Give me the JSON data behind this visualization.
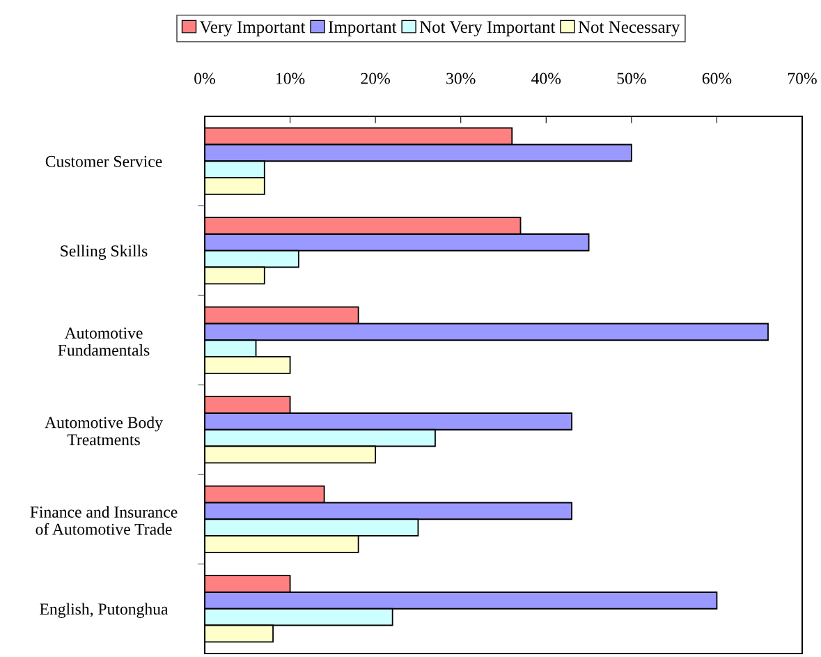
{
  "chart_data": {
    "type": "bar",
    "orientation": "horizontal",
    "categories": [
      "Customer Service",
      "Selling Skills",
      "Automotive\nFundamentals",
      "Automotive Body\nTreatments",
      "Finance and Insurance\nof Automotive Trade",
      "English, Putonghua"
    ],
    "series": [
      {
        "name": "Very Important",
        "color": "#ff8080",
        "values": [
          36,
          37,
          18,
          10,
          14,
          10
        ]
      },
      {
        "name": "Important",
        "color": "#9999ff",
        "values": [
          50,
          45,
          66,
          43,
          43,
          60
        ]
      },
      {
        "name": "Not Very Important",
        "color": "#ccffff",
        "values": [
          7,
          11,
          6,
          27,
          25,
          22
        ]
      },
      {
        "name": "Not Necessary",
        "color": "#ffffcc",
        "values": [
          7,
          7,
          10,
          20,
          18,
          8
        ]
      }
    ],
    "xlim": [
      0,
      70
    ],
    "xticks": [
      {
        "value": 0,
        "label": "0%"
      },
      {
        "value": 10,
        "label": "10%"
      },
      {
        "value": 20,
        "label": "20%"
      },
      {
        "value": 30,
        "label": "30%"
      },
      {
        "value": 40,
        "label": "40%"
      },
      {
        "value": 50,
        "label": "50%"
      },
      {
        "value": 60,
        "label": "60%"
      },
      {
        "value": 70,
        "label": "70%"
      }
    ],
    "grid": false,
    "legend": "top"
  }
}
